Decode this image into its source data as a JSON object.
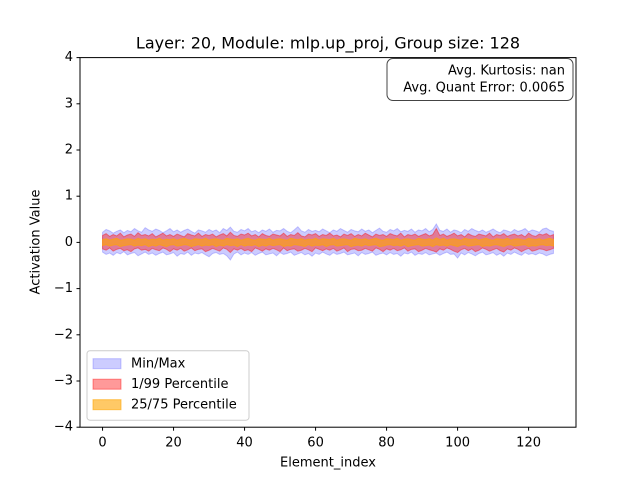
{
  "chart_data": {
    "type": "band",
    "title": "Layer: 20, Module: mlp.up_proj,  Group size: 128",
    "xlabel": "Element_index",
    "ylabel": "Activation Value",
    "annotation": [
      "Avg. Kurtosis: nan",
      "Avg. Quant Error: 0.0065"
    ],
    "legend": "lower left",
    "xlim": [
      -6.35,
      133.35
    ],
    "ylim": [
      -4,
      4
    ],
    "xticks": [
      0,
      20,
      40,
      60,
      80,
      100,
      120
    ],
    "yticks": [
      {
        "value": -4,
        "label": "−4"
      },
      {
        "value": -3,
        "label": "−3"
      },
      {
        "value": -2,
        "label": "−2"
      },
      {
        "value": -1,
        "label": "−1"
      },
      0,
      1,
      2,
      3,
      4
    ],
    "x": [
      0,
      1,
      2,
      3,
      4,
      5,
      6,
      7,
      8,
      9,
      10,
      11,
      12,
      13,
      14,
      15,
      16,
      17,
      18,
      19,
      20,
      21,
      22,
      23,
      24,
      25,
      26,
      27,
      28,
      29,
      30,
      31,
      32,
      33,
      34,
      35,
      36,
      37,
      38,
      39,
      40,
      41,
      42,
      43,
      44,
      45,
      46,
      47,
      48,
      49,
      50,
      51,
      52,
      53,
      54,
      55,
      56,
      57,
      58,
      59,
      60,
      61,
      62,
      63,
      64,
      65,
      66,
      67,
      68,
      69,
      70,
      71,
      72,
      73,
      74,
      75,
      76,
      77,
      78,
      79,
      80,
      81,
      82,
      83,
      84,
      85,
      86,
      87,
      88,
      89,
      90,
      91,
      92,
      93,
      94,
      95,
      96,
      97,
      98,
      99,
      100,
      101,
      102,
      103,
      104,
      105,
      106,
      107,
      108,
      109,
      110,
      111,
      112,
      113,
      114,
      115,
      116,
      117,
      118,
      119,
      120,
      121,
      122,
      123,
      124,
      125,
      126,
      127
    ],
    "series": [
      {
        "name": "Min/Max",
        "color": "#0000ff",
        "alpha": 0.2,
        "upper": [
          0.22,
          0.28,
          0.25,
          0.2,
          0.24,
          0.27,
          0.21,
          0.26,
          0.23,
          0.3,
          0.25,
          0.22,
          0.32,
          0.27,
          0.24,
          0.29,
          0.26,
          0.21,
          0.25,
          0.3,
          0.23,
          0.27,
          0.22,
          0.26,
          0.29,
          0.24,
          0.2,
          0.27,
          0.25,
          0.22,
          0.28,
          0.24,
          0.27,
          0.21,
          0.3,
          0.26,
          0.33,
          0.24,
          0.22,
          0.28,
          0.25,
          0.3,
          0.23,
          0.26,
          0.21,
          0.27,
          0.24,
          0.29,
          0.22,
          0.26,
          0.25,
          0.3,
          0.24,
          0.21,
          0.27,
          0.34,
          0.25,
          0.22,
          0.28,
          0.24,
          0.26,
          0.23,
          0.29,
          0.25,
          0.21,
          0.27,
          0.24,
          0.3,
          0.26,
          0.22,
          0.28,
          0.25,
          0.23,
          0.29,
          0.24,
          0.27,
          0.21,
          0.26,
          0.31,
          0.24,
          0.22,
          0.28,
          0.25,
          0.3,
          0.23,
          0.26,
          0.24,
          0.29,
          0.22,
          0.27,
          0.25,
          0.3,
          0.23,
          0.28,
          0.4,
          0.26,
          0.24,
          0.29,
          0.22,
          0.27,
          0.25,
          0.21,
          0.28,
          0.24,
          0.3,
          0.26,
          0.23,
          0.27,
          0.22,
          0.25,
          0.29,
          0.24,
          0.21,
          0.27,
          0.25,
          0.22,
          0.28,
          0.24,
          0.26,
          0.3,
          0.23,
          0.27,
          0.25,
          0.22,
          0.29,
          0.31,
          0.26,
          0.24
        ],
        "lower": [
          -0.21,
          -0.26,
          -0.23,
          -0.28,
          -0.22,
          -0.25,
          -0.2,
          -0.27,
          -0.24,
          -0.22,
          -0.29,
          -0.25,
          -0.21,
          -0.26,
          -0.23,
          -0.28,
          -0.24,
          -0.21,
          -0.27,
          -0.25,
          -0.22,
          -0.3,
          -0.24,
          -0.26,
          -0.21,
          -0.28,
          -0.23,
          -0.25,
          -0.22,
          -0.27,
          -0.31,
          -0.24,
          -0.22,
          -0.26,
          -0.24,
          -0.29,
          -0.38,
          -0.25,
          -0.21,
          -0.27,
          -0.23,
          -0.26,
          -0.22,
          -0.28,
          -0.24,
          -0.21,
          -0.27,
          -0.25,
          -0.23,
          -0.29,
          -0.22,
          -0.26,
          -0.24,
          -0.21,
          -0.28,
          -0.25,
          -0.22,
          -0.27,
          -0.24,
          -0.3,
          -0.23,
          -0.26,
          -0.21,
          -0.25,
          -0.28,
          -0.22,
          -0.26,
          -0.24,
          -0.21,
          -0.27,
          -0.25,
          -0.23,
          -0.29,
          -0.22,
          -0.26,
          -0.24,
          -0.21,
          -0.28,
          -0.25,
          -0.23,
          -0.27,
          -0.22,
          -0.26,
          -0.24,
          -0.3,
          -0.23,
          -0.25,
          -0.21,
          -0.28,
          -0.24,
          -0.26,
          -0.22,
          -0.27,
          -0.25,
          -0.23,
          -0.28,
          -0.24,
          -0.21,
          -0.26,
          -0.25,
          -0.34,
          -0.23,
          -0.27,
          -0.22,
          -0.25,
          -0.29,
          -0.24,
          -0.21,
          -0.27,
          -0.25,
          -0.22,
          -0.28,
          -0.24,
          -0.3,
          -0.23,
          -0.26,
          -0.21,
          -0.25,
          -0.28,
          -0.22,
          -0.26,
          -0.24,
          -0.27,
          -0.23,
          -0.25,
          -0.29,
          -0.26,
          -0.24
        ]
      },
      {
        "name": "1/99 Percentile",
        "color": "#ff0000",
        "alpha": 0.4,
        "upper": [
          0.15,
          0.19,
          0.13,
          0.17,
          0.14,
          0.2,
          0.12,
          0.16,
          0.18,
          0.13,
          0.21,
          0.15,
          0.17,
          0.14,
          0.19,
          0.12,
          0.16,
          0.2,
          0.14,
          0.17,
          0.13,
          0.18,
          0.15,
          0.12,
          0.19,
          0.16,
          0.14,
          0.2,
          0.13,
          0.17,
          0.15,
          0.18,
          0.12,
          0.16,
          0.19,
          0.14,
          0.22,
          0.15,
          0.13,
          0.18,
          0.16,
          0.2,
          0.14,
          0.17,
          0.12,
          0.19,
          0.15,
          0.13,
          0.18,
          0.16,
          0.14,
          0.2,
          0.13,
          0.17,
          0.15,
          0.21,
          0.14,
          0.12,
          0.18,
          0.16,
          0.19,
          0.13,
          0.17,
          0.15,
          0.2,
          0.14,
          0.16,
          0.12,
          0.18,
          0.15,
          0.19,
          0.13,
          0.17,
          0.14,
          0.2,
          0.16,
          0.12,
          0.18,
          0.15,
          0.17,
          0.13,
          0.19,
          0.16,
          0.14,
          0.2,
          0.12,
          0.17,
          0.15,
          0.18,
          0.13,
          0.16,
          0.19,
          0.14,
          0.17,
          0.3,
          0.15,
          0.18,
          0.13,
          0.16,
          0.2,
          0.14,
          0.17,
          0.12,
          0.19,
          0.15,
          0.13,
          0.18,
          0.16,
          0.14,
          0.2,
          0.12,
          0.17,
          0.15,
          0.19,
          0.13,
          0.16,
          0.18,
          0.14,
          0.17,
          0.12,
          0.2,
          0.15,
          0.13,
          0.18,
          0.16,
          0.19,
          0.14,
          0.17
        ],
        "lower": [
          -0.14,
          -0.17,
          -0.12,
          -0.19,
          -0.15,
          -0.13,
          -0.18,
          -0.16,
          -0.2,
          -0.14,
          -0.12,
          -0.17,
          -0.15,
          -0.19,
          -0.13,
          -0.16,
          -0.18,
          -0.12,
          -0.15,
          -0.2,
          -0.14,
          -0.17,
          -0.13,
          -0.19,
          -0.16,
          -0.12,
          -0.18,
          -0.15,
          -0.14,
          -0.2,
          -0.17,
          -0.13,
          -0.16,
          -0.19,
          -0.12,
          -0.15,
          -0.22,
          -0.14,
          -0.17,
          -0.13,
          -0.18,
          -0.16,
          -0.2,
          -0.12,
          -0.15,
          -0.19,
          -0.14,
          -0.17,
          -0.13,
          -0.16,
          -0.2,
          -0.12,
          -0.18,
          -0.15,
          -0.14,
          -0.19,
          -0.17,
          -0.13,
          -0.16,
          -0.2,
          -0.12,
          -0.15,
          -0.18,
          -0.14,
          -0.17,
          -0.13,
          -0.19,
          -0.16,
          -0.12,
          -0.2,
          -0.15,
          -0.14,
          -0.18,
          -0.17,
          -0.13,
          -0.16,
          -0.19,
          -0.12,
          -0.15,
          -0.2,
          -0.14,
          -0.17,
          -0.13,
          -0.18,
          -0.16,
          -0.12,
          -0.19,
          -0.15,
          -0.14,
          -0.2,
          -0.17,
          -0.13,
          -0.16,
          -0.18,
          -0.21,
          -0.14,
          -0.17,
          -0.12,
          -0.15,
          -0.19,
          -0.22,
          -0.16,
          -0.13,
          -0.18,
          -0.14,
          -0.2,
          -0.17,
          -0.12,
          -0.15,
          -0.19,
          -0.16,
          -0.13,
          -0.18,
          -0.21,
          -0.14,
          -0.17,
          -0.12,
          -0.15,
          -0.2,
          -0.16,
          -0.13,
          -0.19,
          -0.17,
          -0.14,
          -0.15,
          -0.18,
          -0.16,
          -0.13
        ]
      },
      {
        "name": "25/75 Percentile",
        "color": "#ffa500",
        "alpha": 0.6,
        "upper": [
          0.06,
          0.08,
          0.05,
          0.07,
          0.09,
          0.05,
          0.06,
          0.08,
          0.07,
          0.05,
          0.09,
          0.06,
          0.08,
          0.05,
          0.07,
          0.06,
          0.09,
          0.05,
          0.07,
          0.06,
          0.08,
          0.05,
          0.07,
          0.09,
          0.06,
          0.05,
          0.08,
          0.07,
          0.06,
          0.09,
          0.05,
          0.07,
          0.08,
          0.06,
          0.05,
          0.09,
          0.07,
          0.06,
          0.08,
          0.05,
          0.07,
          0.09,
          0.06,
          0.05,
          0.08,
          0.07,
          0.06,
          0.09,
          0.05,
          0.07,
          0.08,
          0.06,
          0.05,
          0.09,
          0.07,
          0.06,
          0.08,
          0.05,
          0.07,
          0.06,
          0.09,
          0.05,
          0.08,
          0.07,
          0.06,
          0.09,
          0.05,
          0.07,
          0.08,
          0.06,
          0.05,
          0.09,
          0.07,
          0.06,
          0.08,
          0.05,
          0.07,
          0.09,
          0.06,
          0.05,
          0.08,
          0.07,
          0.06,
          0.09,
          0.05,
          0.07,
          0.08,
          0.06,
          0.05,
          0.09,
          0.07,
          0.06,
          0.08,
          0.05,
          0.1,
          0.06,
          0.09,
          0.05,
          0.07,
          0.08,
          0.06,
          0.05,
          0.09,
          0.07,
          0.06,
          0.08,
          0.05,
          0.07,
          0.09,
          0.06,
          0.05,
          0.08,
          0.07,
          0.06,
          0.09,
          0.05,
          0.07,
          0.08,
          0.06,
          0.05,
          0.09,
          0.07,
          0.06,
          0.08,
          0.05,
          0.07,
          0.09,
          0.06
        ],
        "lower": [
          -0.07,
          -0.05,
          -0.08,
          -0.06,
          -0.05,
          -0.09,
          -0.07,
          -0.06,
          -0.05,
          -0.08,
          -0.06,
          -0.07,
          -0.05,
          -0.09,
          -0.06,
          -0.08,
          -0.05,
          -0.07,
          -0.09,
          -0.06,
          -0.05,
          -0.08,
          -0.07,
          -0.05,
          -0.06,
          -0.09,
          -0.07,
          -0.05,
          -0.08,
          -0.06,
          -0.07,
          -0.05,
          -0.09,
          -0.06,
          -0.08,
          -0.05,
          -0.07,
          -0.06,
          -0.09,
          -0.05,
          -0.08,
          -0.06,
          -0.07,
          -0.05,
          -0.09,
          -0.06,
          -0.08,
          -0.05,
          -0.07,
          -0.06,
          -0.05,
          -0.09,
          -0.07,
          -0.08,
          -0.05,
          -0.06,
          -0.07,
          -0.09,
          -0.05,
          -0.08,
          -0.06,
          -0.07,
          -0.05,
          -0.09,
          -0.06,
          -0.05,
          -0.08,
          -0.07,
          -0.06,
          -0.05,
          -0.09,
          -0.07,
          -0.06,
          -0.08,
          -0.05,
          -0.07,
          -0.06,
          -0.05,
          -0.09,
          -0.08,
          -0.06,
          -0.05,
          -0.07,
          -0.06,
          -0.08,
          -0.05,
          -0.09,
          -0.07,
          -0.06,
          -0.05,
          -0.08,
          -0.07,
          -0.06,
          -0.09,
          -0.05,
          -0.07,
          -0.06,
          -0.08,
          -0.05,
          -0.07,
          -0.09,
          -0.06,
          -0.05,
          -0.08,
          -0.07,
          -0.06,
          -0.05,
          -0.09,
          -0.07,
          -0.08,
          -0.06,
          -0.05,
          -0.07,
          -0.09,
          -0.06,
          -0.05,
          -0.08,
          -0.07,
          -0.06,
          -0.05,
          -0.09,
          -0.07,
          -0.08,
          -0.06,
          -0.05,
          -0.07,
          -0.06,
          -0.08
        ]
      }
    ]
  }
}
